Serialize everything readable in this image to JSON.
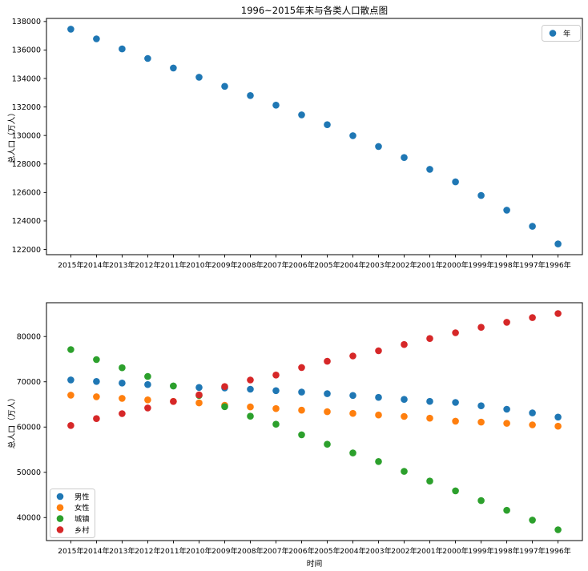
{
  "figure": {
    "title": "1996~2015年末与各类人口散点图",
    "background": "#ffffff",
    "spine_color": "#000000",
    "legend_border_color": "#cccccc"
  },
  "chart_data": [
    {
      "type": "scatter",
      "title": "1996~2015年末与各类人口散点图",
      "xlabel": "",
      "ylabel": "总人口（万人）",
      "x_categories": [
        "2015年",
        "2014年",
        "2013年",
        "2012年",
        "2011年",
        "2010年",
        "2009年",
        "2008年",
        "2007年",
        "2006年",
        "2005年",
        "2004年",
        "2003年",
        "2002年",
        "2001年",
        "2000年",
        "1999年",
        "1998年",
        "1997年",
        "1996年"
      ],
      "yticks": [
        122000,
        124000,
        126000,
        128000,
        130000,
        132000,
        134000,
        136000,
        138000
      ],
      "ylim": [
        121635,
        138216
      ],
      "grid": false,
      "legend_position": "upper right",
      "series": [
        {
          "name": "年",
          "color": "#1f77b4",
          "values": [
            137462,
            136782,
            136072,
            135404,
            134735,
            134091,
            133450,
            132802,
            132129,
            131448,
            130756,
            129988,
            129227,
            128453,
            127627,
            126743,
            125786,
            124761,
            123626,
            122389
          ]
        }
      ]
    },
    {
      "type": "scatter",
      "title": "",
      "xlabel": "时间",
      "ylabel": "总人口（万人）",
      "x_categories": [
        "2015年",
        "2014年",
        "2013年",
        "2012年",
        "2011年",
        "2010年",
        "2009年",
        "2008年",
        "2007年",
        "2006年",
        "2005年",
        "2004年",
        "2003年",
        "2002年",
        "2001年",
        "2000年",
        "1999年",
        "1998年",
        "1997年",
        "1996年"
      ],
      "yticks": [
        40000,
        50000,
        60000,
        70000,
        80000
      ],
      "ylim": [
        34915,
        87474
      ],
      "grid": false,
      "legend_position": "lower left",
      "series": [
        {
          "name": "男性",
          "color": "#1f77b4",
          "values": [
            70414,
            70079,
            69728,
            69395,
            69068,
            68748,
            68647,
            68357,
            68048,
            67728,
            67375,
            66976,
            66556,
            66115,
            65672,
            65437,
            64692,
            63940,
            63131,
            62200
          ]
        },
        {
          "name": "女性",
          "color": "#ff7f0e",
          "values": [
            67048,
            66703,
            66344,
            66009,
            65667,
            65343,
            64803,
            64445,
            64081,
            63720,
            63381,
            63012,
            62671,
            62338,
            61955,
            61306,
            61094,
            60821,
            60495,
            60189
          ]
        },
        {
          "name": "城镇",
          "color": "#2ca02c",
          "values": [
            77116,
            74916,
            73111,
            71182,
            69079,
            66978,
            64512,
            62403,
            60633,
            58288,
            56212,
            54283,
            52376,
            50212,
            48064,
            45906,
            43748,
            41608,
            39449,
            37304
          ]
        },
        {
          "name": "乡村",
          "color": "#d62728",
          "values": [
            60346,
            61866,
            62961,
            64222,
            65656,
            67113,
            68938,
            70399,
            71496,
            73160,
            74544,
            75705,
            76851,
            78241,
            79563,
            80837,
            82038,
            83153,
            84177,
            85085
          ]
        }
      ]
    }
  ]
}
